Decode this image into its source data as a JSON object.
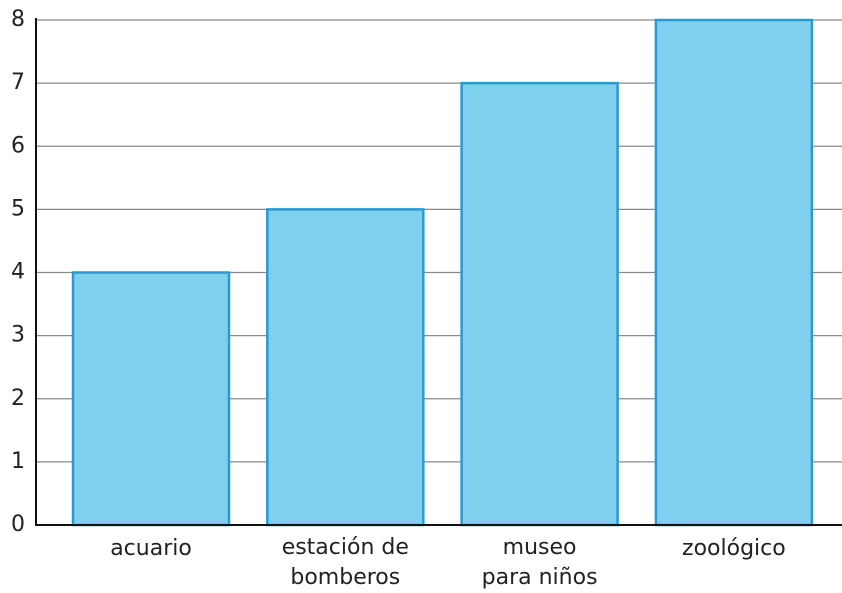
{
  "chart_data": {
    "type": "bar",
    "categories": [
      "acuario",
      "estación de\nbomberos",
      "museo\npara niños",
      "zoológico"
    ],
    "values": [
      4,
      5,
      7,
      8
    ],
    "color": "#7fcfee",
    "edge_color": "#2a9ad0",
    "ylim": [
      0,
      8
    ],
    "yticks": [
      0,
      1,
      2,
      3,
      4,
      5,
      6,
      7,
      8
    ],
    "grid": true
  }
}
